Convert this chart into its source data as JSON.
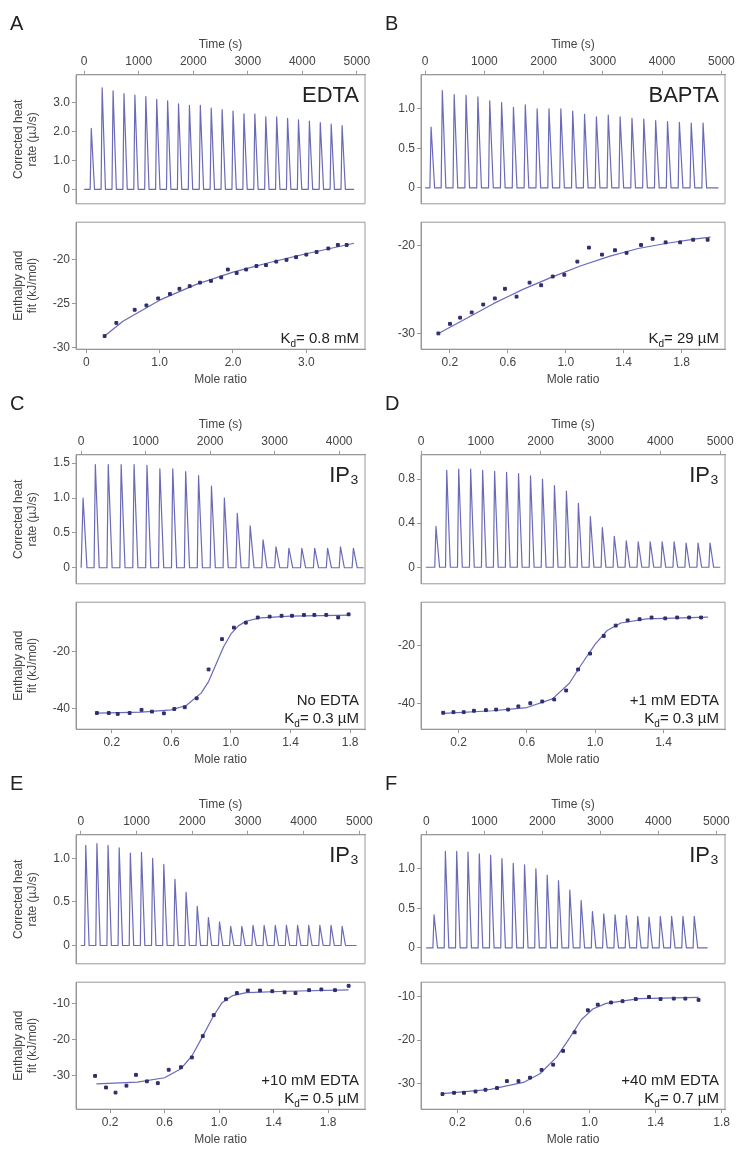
{
  "chart_data": [
    {
      "type": "line",
      "title": "A",
      "xlabel": "Time (s)",
      "ylabel": "Corrected heat rate (µJ/s)",
      "annotations": [
        "EDTA"
      ],
      "xlim": [
        -150,
        5150
      ],
      "xticks": [
        0,
        1000,
        2000,
        3000,
        4000,
        5000
      ],
      "ylim": [
        -0.5,
        3.95
      ],
      "yticks": [
        0,
        {
          "value": 1,
          "label": "1.0"
        },
        {
          "value": 2,
          "label": "2.0"
        },
        {
          "value": 3,
          "label": "3.0"
        }
      ],
      "series": [
        {
          "color": "#6a6ab8",
          "x": [
            0,
            110,
            130,
            190,
            310,
            330,
            390,
            510,
            530,
            590,
            710,
            730,
            790,
            910,
            930,
            990,
            1110,
            1130,
            1190,
            1310,
            1330,
            1390,
            1510,
            1530,
            1590,
            1710,
            1730,
            1790,
            1910,
            1930,
            1990,
            2110,
            2130,
            2190,
            2310,
            2330,
            2390,
            2510,
            2530,
            2590,
            2710,
            2730,
            2790,
            2910,
            2930,
            2990,
            3110,
            3130,
            3190,
            3310,
            3330,
            3390,
            3510,
            3530,
            3590,
            3710,
            3730,
            3790,
            3910,
            3930,
            3990,
            4110,
            4130,
            4190,
            4310,
            4330,
            4390,
            4510,
            4530,
            4590,
            4710,
            4730,
            4790,
            4950
          ],
          "values": [
            0,
            0,
            2.1,
            0,
            0,
            3.5,
            0,
            0,
            3.4,
            0,
            0,
            3.3,
            0,
            0,
            3.25,
            0,
            0,
            3.2,
            0,
            0,
            3.1,
            0,
            0,
            3.05,
            0,
            0,
            2.95,
            0,
            0,
            2.9,
            0,
            0,
            2.9,
            0,
            0,
            2.8,
            0,
            0,
            2.75,
            0,
            0,
            2.7,
            0,
            0,
            2.6,
            0,
            0,
            2.6,
            0,
            0,
            2.5,
            0,
            0,
            2.5,
            0,
            0,
            2.45,
            0,
            0,
            2.4,
            0,
            0,
            2.35,
            0,
            0,
            2.3,
            0,
            0,
            2.25,
            0,
            0,
            2.2,
            0,
            0
          ]
        }
      ]
    },
    {
      "type": "scatter",
      "xlabel": "Mole ratio",
      "ylabel": "Enthalpy and fit (kJ/mol)",
      "annotations": [
        "K$_{d}$= 0.8 mM"
      ],
      "xlim": [
        -0.14,
        3.8
      ],
      "xticks": [
        0,
        {
          "value": 1,
          "label": "1.0"
        },
        {
          "value": 2,
          "label": "2.0"
        },
        {
          "value": 3,
          "label": "3.0"
        }
      ],
      "ylim": [
        -30.2,
        -15.7
      ],
      "yticks": [
        -30,
        -25,
        -20
      ],
      "series": [
        {
          "type": "scatter",
          "marker": "square",
          "color": "#2e2e6e",
          "x": [
            0.25,
            0.41,
            0.66,
            0.82,
            0.98,
            1.14,
            1.27,
            1.41,
            1.55,
            1.7,
            1.84,
            1.93,
            2.05,
            2.18,
            2.32,
            2.45,
            2.59,
            2.73,
            2.86,
            3.0,
            3.14,
            3.3,
            3.43,
            3.55
          ],
          "values": [
            -28.7,
            -27.2,
            -25.7,
            -25.2,
            -24.4,
            -23.9,
            -23.3,
            -23.0,
            -22.6,
            -22.4,
            -22.0,
            -21.1,
            -21.5,
            -21.1,
            -20.7,
            -20.6,
            -20.2,
            -20.0,
            -19.7,
            -19.4,
            -19.1,
            -18.7,
            -18.3,
            -18.3
          ]
        },
        {
          "type": "line",
          "color": "#6a6ab8",
          "x": [
            0.25,
            0.5,
            1.0,
            1.5,
            2.0,
            2.5,
            3.0,
            3.65
          ],
          "values": [
            -28.7,
            -27.0,
            -24.6,
            -22.8,
            -21.4,
            -20.3,
            -19.3,
            -18.1
          ]
        }
      ]
    },
    {
      "type": "line",
      "title": "B",
      "xlabel": "Time (s)",
      "annotations": [
        "BAPTA"
      ],
      "xlim": [
        -70,
        5060
      ],
      "xticks": [
        0,
        1000,
        2000,
        3000,
        4000,
        5000
      ],
      "ylim": [
        -0.2,
        1.43
      ],
      "yticks": [
        0,
        0.5,
        {
          "value": 1,
          "label": "1.0"
        }
      ],
      "series": [
        {
          "color": "#6a6ab8",
          "x": [
            0,
            80,
            100,
            160,
            270,
            290,
            350,
            470,
            490,
            550,
            670,
            690,
            750,
            870,
            890,
            950,
            1070,
            1090,
            1150,
            1270,
            1290,
            1350,
            1470,
            1490,
            1550,
            1670,
            1690,
            1750,
            1870,
            1890,
            1950,
            2070,
            2090,
            2150,
            2270,
            2290,
            2350,
            2470,
            2490,
            2550,
            2670,
            2690,
            2750,
            2870,
            2890,
            2950,
            3070,
            3090,
            3150,
            3270,
            3290,
            3350,
            3470,
            3490,
            3550,
            3670,
            3690,
            3750,
            3870,
            3890,
            3950,
            4070,
            4090,
            4150,
            4270,
            4290,
            4350,
            4470,
            4490,
            4550,
            4670,
            4690,
            4750,
            4950
          ],
          "values": [
            0,
            0,
            0.77,
            0,
            0,
            1.23,
            0,
            0,
            1.18,
            0,
            0,
            1.17,
            0,
            0,
            1.15,
            0,
            0,
            1.1,
            0,
            0,
            1.08,
            0,
            0,
            1.02,
            0,
            0,
            1.05,
            0,
            0,
            1.0,
            0,
            0,
            1.0,
            0,
            0,
            1.0,
            0,
            0,
            0.97,
            0,
            0,
            0.93,
            0,
            0,
            0.9,
            0,
            0,
            0.92,
            0,
            0,
            0.9,
            0,
            0,
            0.88,
            0,
            0,
            0.87,
            0,
            0,
            0.85,
            0,
            0,
            0.84,
            0,
            0,
            0.83,
            0,
            0,
            0.82,
            0,
            0,
            0.82,
            0,
            0
          ]
        }
      ]
    },
    {
      "type": "scatter",
      "xlabel": "Mole ratio",
      "annotations": [
        "K$_{d}$= 29 µM"
      ],
      "xlim": [
        0,
        2.1
      ],
      "xticks": [
        0.2,
        0.6,
        {
          "value": 1,
          "label": "1.0"
        },
        1.4,
        1.8
      ],
      "ylim": [
        -31.8,
        -17.3
      ],
      "yticks": [
        -30,
        -20
      ],
      "series": [
        {
          "type": "scatter",
          "marker": "square",
          "color": "#2e2e6e",
          "x": [
            0.12,
            0.2,
            0.27,
            0.35,
            0.43,
            0.51,
            0.58,
            0.66,
            0.75,
            0.83,
            0.91,
            0.99,
            1.08,
            1.16,
            1.25,
            1.34,
            1.42,
            1.52,
            1.6,
            1.69,
            1.79,
            1.88,
            1.98
          ],
          "values": [
            -30.0,
            -28.9,
            -28.2,
            -27.6,
            -26.7,
            -26.0,
            -24.9,
            -25.8,
            -24.2,
            -24.5,
            -23.5,
            -23.3,
            -21.8,
            -20.2,
            -21.0,
            -20.5,
            -20.8,
            -19.9,
            -19.2,
            -19.6,
            -19.6,
            -19.3,
            -19.3
          ]
        },
        {
          "type": "line",
          "color": "#6a6ab8",
          "x": [
            0.12,
            0.3,
            0.5,
            0.7,
            0.9,
            1.1,
            1.3,
            1.5,
            1.7,
            1.9,
            2.0
          ],
          "values": [
            -30.0,
            -28.4,
            -26.6,
            -25.0,
            -23.6,
            -22.3,
            -21.2,
            -20.3,
            -19.7,
            -19.2,
            -19.0
          ]
        }
      ]
    },
    {
      "type": "line",
      "title": "C",
      "xlabel": "Time (s)",
      "ylabel": "Corrected heat rate (µJ/s)",
      "annotations": [
        "IP₃"
      ],
      "xlim": [
        -80,
        4400
      ],
      "xticks": [
        0,
        1000,
        2000,
        3000,
        4000
      ],
      "ylim": [
        -0.23,
        1.62
      ],
      "yticks": [
        0,
        0.5,
        {
          "value": 1,
          "label": "1.0"
        },
        1.5
      ],
      "series": [
        {
          "color": "#6a6ab8",
          "x": [
            0,
            10,
            30,
            90,
            200,
            220,
            280,
            400,
            420,
            480,
            600,
            620,
            680,
            800,
            820,
            880,
            1000,
            1020,
            1080,
            1200,
            1220,
            1280,
            1400,
            1420,
            1480,
            1600,
            1620,
            1680,
            1800,
            1820,
            1880,
            2000,
            2020,
            2080,
            2200,
            2220,
            2280,
            2400,
            2420,
            2480,
            2600,
            2620,
            2680,
            2800,
            2820,
            2880,
            3000,
            3020,
            3080,
            3200,
            3220,
            3280,
            3400,
            3420,
            3480,
            3600,
            3620,
            3680,
            3800,
            3820,
            3880,
            4000,
            4020,
            4080,
            4200,
            4220,
            4280,
            4380
          ],
          "values": [
            0,
            0,
            1.0,
            0,
            0,
            1.48,
            0,
            0,
            1.48,
            0,
            0,
            1.48,
            0,
            0,
            1.48,
            0,
            0,
            1.47,
            0,
            0,
            1.42,
            0,
            0,
            1.42,
            0,
            0,
            1.38,
            0,
            0,
            1.32,
            0,
            0,
            1.17,
            0,
            0,
            1.0,
            0,
            0,
            0.78,
            0,
            0,
            0.6,
            0,
            0,
            0.4,
            0,
            0,
            0.3,
            0,
            0,
            0.28,
            0,
            0,
            0.28,
            0,
            0,
            0.28,
            0,
            0,
            0.28,
            0,
            0,
            0.3,
            0,
            0,
            0.28,
            0,
            0
          ]
        }
      ]
    },
    {
      "type": "scatter",
      "xlabel": "Mole ratio",
      "ylabel": "Enthalpy and fit (kJ/mol)",
      "annotations": [
        "No EDTA",
        "K$_{d}$= 0.3 µM"
      ],
      "xlim": [
        -0.04,
        1.9
      ],
      "xticks": [
        0.2,
        0.6,
        {
          "value": 1,
          "label": "1.0"
        },
        1.4,
        1.8
      ],
      "ylim": [
        -47,
        -3
      ],
      "yticks": [
        -40,
        -20
      ],
      "series": [
        {
          "type": "scatter",
          "marker": "square",
          "color": "#2e2e6e",
          "x": [
            0.1,
            0.18,
            0.24,
            0.32,
            0.4,
            0.47,
            0.55,
            0.62,
            0.69,
            0.77,
            0.85,
            0.94,
            1.02,
            1.1,
            1.18,
            1.26,
            1.34,
            1.41,
            1.49,
            1.56,
            1.64,
            1.72,
            1.79
          ],
          "values": [
            -41.4,
            -41.4,
            -41.7,
            -41.4,
            -40.3,
            -40.9,
            -41.5,
            -40.0,
            -39.4,
            -36.3,
            -26.3,
            -15.8,
            -11.8,
            -10.1,
            -8.3,
            -8.0,
            -7.7,
            -7.7,
            -7.4,
            -7.4,
            -7.4,
            -8.3,
            -7.2
          ]
        },
        {
          "type": "line",
          "color": "#6a6ab8",
          "x": [
            0.1,
            0.4,
            0.6,
            0.7,
            0.8,
            0.85,
            0.9,
            0.95,
            1.0,
            1.05,
            1.1,
            1.2,
            1.4,
            1.8
          ],
          "values": [
            -41.4,
            -41.1,
            -40.3,
            -38.8,
            -34.5,
            -30.5,
            -24.5,
            -18.5,
            -14.0,
            -11.2,
            -9.6,
            -8.4,
            -7.8,
            -7.5
          ]
        }
      ]
    },
    {
      "type": "line",
      "title": "D",
      "xlabel": "Time (s)",
      "annotations": [
        "IP₃"
      ],
      "xlim": [
        0,
        5080
      ],
      "xticks": [
        0,
        1000,
        2000,
        3000,
        4000,
        5000
      ],
      "ylim": [
        -0.15,
        1.02
      ],
      "yticks": [
        0,
        0.4,
        0.8
      ],
      "series": [
        {
          "color": "#6a6ab8",
          "x": [
            80,
            230,
            250,
            310,
            410,
            430,
            490,
            610,
            630,
            690,
            810,
            830,
            890,
            1010,
            1030,
            1090,
            1210,
            1230,
            1290,
            1410,
            1430,
            1490,
            1610,
            1630,
            1690,
            1810,
            1830,
            1890,
            2010,
            2030,
            2090,
            2210,
            2230,
            2290,
            2410,
            2430,
            2490,
            2610,
            2630,
            2690,
            2810,
            2830,
            2890,
            3010,
            3030,
            3090,
            3210,
            3230,
            3290,
            3410,
            3430,
            3490,
            3610,
            3630,
            3690,
            3810,
            3830,
            3890,
            4010,
            4030,
            4090,
            4210,
            4230,
            4290,
            4410,
            4430,
            4490,
            4610,
            4630,
            4690,
            4810,
            4830,
            4890,
            5000
          ],
          "values": [
            0,
            0,
            0.37,
            0,
            0,
            0.88,
            0,
            0,
            0.89,
            0,
            0,
            0.89,
            0,
            0,
            0.88,
            0,
            0,
            0.87,
            0,
            0,
            0.86,
            0,
            0,
            0.85,
            0,
            0,
            0.83,
            0,
            0,
            0.8,
            0,
            0,
            0.74,
            0,
            0,
            0.69,
            0,
            0,
            0.58,
            0,
            0,
            0.46,
            0,
            0,
            0.36,
            0,
            0,
            0.28,
            0,
            0,
            0.24,
            0,
            0,
            0.23,
            0,
            0,
            0.23,
            0,
            0,
            0.23,
            0,
            0,
            0.23,
            0,
            0,
            0.22,
            0,
            0,
            0.22,
            0,
            0,
            0.22,
            0,
            0
          ]
        }
      ]
    },
    {
      "type": "scatter",
      "xlabel": "Mole ratio",
      "annotations": [
        "+1 mM EDTA",
        "K$_{d}$= 0.3 µM"
      ],
      "xlim": [
        -0.02,
        1.76
      ],
      "xticks": [
        0.2,
        0.6,
        {
          "value": 1,
          "label": "1.0"
        },
        1.4
      ],
      "ylim": [
        -49,
        -5
      ],
      "yticks": [
        -40,
        -20
      ],
      "series": [
        {
          "type": "scatter",
          "marker": "square",
          "color": "#2e2e6e",
          "x": [
            0.11,
            0.17,
            0.23,
            0.29,
            0.36,
            0.42,
            0.49,
            0.55,
            0.62,
            0.69,
            0.76,
            0.83,
            0.9,
            0.97,
            1.05,
            1.12,
            1.19,
            1.26,
            1.33,
            1.41,
            1.48,
            1.55,
            1.62
          ],
          "values": [
            -43.3,
            -43.1,
            -43.1,
            -42.6,
            -42.4,
            -42.2,
            -42.2,
            -41.1,
            -40.0,
            -39.4,
            -38.7,
            -35.6,
            -28.3,
            -22.8,
            -16.7,
            -13.1,
            -11.3,
            -10.9,
            -10.3,
            -10.6,
            -10.3,
            -10.3,
            -10.3
          ]
        },
        {
          "type": "line",
          "color": "#6a6ab8",
          "x": [
            0.11,
            0.4,
            0.6,
            0.75,
            0.85,
            0.92,
            1.0,
            1.07,
            1.15,
            1.3,
            1.66
          ],
          "values": [
            -43.5,
            -42.6,
            -41.5,
            -38.5,
            -33.0,
            -26.5,
            -19.5,
            -14.8,
            -12.2,
            -10.8,
            -10.2
          ]
        }
      ]
    },
    {
      "type": "line",
      "title": "E",
      "xlabel": "Time (s)",
      "ylabel": "Corrected heat rate (µJ/s)",
      "annotations": [
        "IP₃"
      ],
      "xlim": [
        -85,
        5100
      ],
      "xticks": [
        0,
        1000,
        2000,
        3000,
        4000,
        5000
      ],
      "ylim": [
        -0.21,
        1.27
      ],
      "yticks": [
        0,
        0.5,
        {
          "value": 1,
          "label": "1.0"
        }
      ],
      "series": [
        {
          "color": "#6a6ab8",
          "x": [
            0,
            70,
            90,
            150,
            270,
            290,
            350,
            470,
            490,
            550,
            670,
            690,
            750,
            870,
            890,
            950,
            1070,
            1090,
            1150,
            1270,
            1290,
            1350,
            1470,
            1490,
            1550,
            1670,
            1690,
            1750,
            1870,
            1890,
            1950,
            2070,
            2090,
            2150,
            2270,
            2290,
            2350,
            2470,
            2490,
            2550,
            2670,
            2690,
            2750,
            2870,
            2890,
            2950,
            3070,
            3090,
            3150,
            3270,
            3290,
            3350,
            3470,
            3490,
            3550,
            3670,
            3690,
            3750,
            3870,
            3890,
            3950,
            4070,
            4090,
            4150,
            4270,
            4290,
            4350,
            4470,
            4490,
            4550,
            4670,
            4690,
            4750,
            4950
          ],
          "values": [
            0,
            0,
            1.15,
            0,
            0,
            1.17,
            0,
            0,
            1.15,
            0,
            0,
            1.12,
            0,
            0,
            1.06,
            0,
            0,
            1.07,
            0,
            0,
            1.0,
            0,
            0,
            0.93,
            0,
            0,
            0.76,
            0,
            0,
            0.61,
            0,
            0,
            0.45,
            0,
            0,
            0.32,
            0,
            0,
            0.27,
            0,
            0,
            0.22,
            0,
            0,
            0.22,
            0,
            0,
            0.23,
            0,
            0,
            0.23,
            0,
            0,
            0.23,
            0,
            0,
            0.23,
            0,
            0,
            0.23,
            0,
            0,
            0.23,
            0,
            0,
            0.23,
            0,
            0,
            0.23,
            0,
            0,
            0.22,
            0,
            0
          ]
        }
      ]
    },
    {
      "type": "scatter",
      "xlabel": "Mole ratio",
      "ylabel": "Enthalpy and fit (kJ/mol)",
      "annotations": [
        "+10 mM EDTA",
        "K$_{d}$= 0.5 µM"
      ],
      "xlim": [
        -0.05,
        2.07
      ],
      "xticks": [
        0.2,
        0.6,
        {
          "value": 1,
          "label": "1.0"
        },
        1.4,
        1.8
      ],
      "ylim": [
        -39.2,
        -4.1
      ],
      "yticks": [
        -30,
        -20,
        -10
      ],
      "series": [
        {
          "type": "scatter",
          "marker": "square",
          "color": "#2e2e6e",
          "x": [
            0.09,
            0.17,
            0.24,
            0.32,
            0.39,
            0.47,
            0.55,
            0.63,
            0.72,
            0.8,
            0.88,
            0.96,
            1.05,
            1.13,
            1.21,
            1.3,
            1.39,
            1.48,
            1.56,
            1.66,
            1.75,
            1.85,
            1.95
          ],
          "values": [
            -30.0,
            -33.2,
            -34.6,
            -32.7,
            -29.7,
            -31.5,
            -32.0,
            -28.3,
            -27.6,
            -24.9,
            -19.0,
            -13.2,
            -8.8,
            -7.1,
            -6.4,
            -6.4,
            -6.6,
            -6.9,
            -7.1,
            -6.3,
            -6.1,
            -6.3,
            -5.1
          ]
        },
        {
          "type": "line",
          "color": "#6a6ab8",
          "x": [
            0.1,
            0.4,
            0.6,
            0.72,
            0.8,
            0.88,
            0.95,
            1.02,
            1.1,
            1.2,
            1.5,
            1.95
          ],
          "values": [
            -32.2,
            -31.7,
            -30.5,
            -28.0,
            -24.5,
            -19.0,
            -14.0,
            -9.8,
            -7.8,
            -7.0,
            -6.6,
            -6.2
          ]
        }
      ]
    },
    {
      "type": "line",
      "title": "F",
      "xlabel": "Time (s)",
      "annotations": [
        "IP₃"
      ],
      "xlim": [
        -90,
        5150
      ],
      "xticks": [
        0,
        1000,
        2000,
        3000,
        4000,
        5000
      ],
      "ylim": [
        -0.2,
        1.43
      ],
      "yticks": [
        0,
        0.5,
        {
          "value": 1,
          "label": "1.0"
        }
      ],
      "series": [
        {
          "color": "#6a6ab8",
          "x": [
            0,
            115,
            135,
            195,
            310,
            330,
            390,
            505,
            525,
            585,
            700,
            720,
            780,
            895,
            915,
            975,
            1090,
            1110,
            1170,
            1285,
            1305,
            1365,
            1480,
            1500,
            1560,
            1675,
            1695,
            1755,
            1870,
            1890,
            1950,
            2065,
            2085,
            2145,
            2260,
            2280,
            2340,
            2455,
            2475,
            2535,
            2650,
            2670,
            2730,
            2845,
            2865,
            2925,
            3040,
            3060,
            3120,
            3235,
            3255,
            3315,
            3430,
            3450,
            3510,
            3625,
            3645,
            3705,
            3820,
            3840,
            3900,
            4015,
            4035,
            4095,
            4210,
            4230,
            4290,
            4405,
            4425,
            4485,
            4600,
            4620,
            4680,
            4850
          ],
          "values": [
            0,
            0,
            0.42,
            0,
            0,
            1.22,
            0,
            0,
            1.22,
            0,
            0,
            1.21,
            0,
            0,
            1.19,
            0,
            0,
            1.17,
            0,
            0,
            1.13,
            0,
            0,
            1.07,
            0,
            0,
            1.05,
            0,
            0,
            1.0,
            0,
            0,
            0.92,
            0,
            0,
            0.85,
            0,
            0,
            0.73,
            0,
            0,
            0.6,
            0,
            0,
            0.46,
            0,
            0,
            0.43,
            0,
            0,
            0.42,
            0,
            0,
            0.41,
            0,
            0,
            0.4,
            0,
            0,
            0.39,
            0,
            0,
            0.4,
            0,
            0,
            0.4,
            0,
            0,
            0.4,
            0,
            0,
            0.4,
            0,
            0
          ]
        }
      ]
    },
    {
      "type": "scatter",
      "xlabel": "Mole ratio",
      "annotations": [
        "+40 mM EDTA",
        "K$_{d}$= 0.7 µM"
      ],
      "xlim": [
        -0.02,
        1.82
      ],
      "xticks": [
        0.2,
        0.6,
        {
          "value": 1,
          "label": "1.0"
        },
        1.4,
        1.8
      ],
      "ylim": [
        -36,
        -6.6
      ],
      "yticks": [
        -30,
        -20,
        -10
      ],
      "series": [
        {
          "type": "scatter",
          "marker": "square",
          "color": "#2e2e6e",
          "x": [
            0.11,
            0.18,
            0.24,
            0.31,
            0.37,
            0.44,
            0.5,
            0.57,
            0.64,
            0.71,
            0.78,
            0.84,
            0.91,
            0.99,
            1.05,
            1.13,
            1.2,
            1.28,
            1.36,
            1.43,
            1.51,
            1.58,
            1.66
          ],
          "values": [
            -32.5,
            -32.2,
            -32.2,
            -31.9,
            -31.5,
            -31.1,
            -29.5,
            -29.5,
            -28.7,
            -26.9,
            -25.7,
            -22.5,
            -18.2,
            -13.1,
            -11.8,
            -11.3,
            -11.0,
            -10.5,
            -10.0,
            -10.5,
            -10.4,
            -10.4,
            -10.7
          ]
        },
        {
          "type": "line",
          "color": "#6a6ab8",
          "x": [
            0.11,
            0.4,
            0.6,
            0.7,
            0.8,
            0.88,
            0.95,
            1.02,
            1.1,
            1.3,
            1.66
          ],
          "values": [
            -32.4,
            -31.4,
            -29.8,
            -27.8,
            -24.0,
            -19.5,
            -15.3,
            -12.8,
            -11.5,
            -10.4,
            -10.1
          ]
        }
      ]
    }
  ]
}
